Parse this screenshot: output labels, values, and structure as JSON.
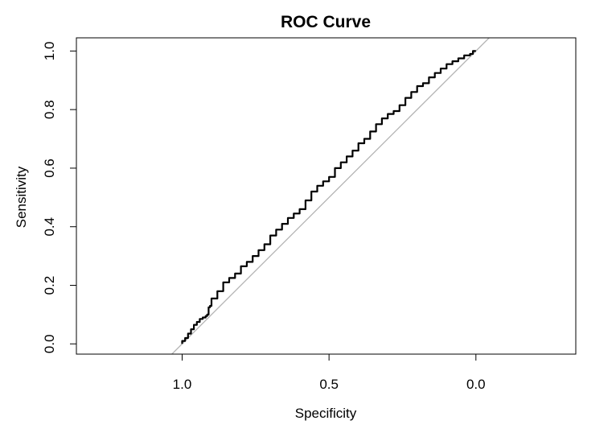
{
  "chart_data": {
    "type": "line",
    "title": "ROC Curve",
    "xlabel": "Specificity",
    "ylabel": "Sensitivity",
    "x_reversed": true,
    "xlim": [
      1.36,
      -0.34
    ],
    "ylim": [
      -0.035,
      1.045
    ],
    "x_ticks": [
      1.0,
      0.5,
      0.0
    ],
    "x_tick_labels": [
      "1.0",
      "0.5",
      "0.0"
    ],
    "y_ticks": [
      0.0,
      0.2,
      0.4,
      0.6,
      0.8,
      1.0
    ],
    "y_tick_labels": [
      "0.0",
      "0.2",
      "0.4",
      "0.6",
      "0.8",
      "1.0"
    ],
    "grid": false,
    "series": [
      {
        "x": [
          1.0,
          0.99,
          0.98,
          0.97,
          0.96,
          0.95,
          0.94,
          0.93,
          0.92,
          0.915,
          0.91,
          0.905,
          0.9,
          0.88,
          0.86,
          0.84,
          0.82,
          0.8,
          0.78,
          0.76,
          0.74,
          0.72,
          0.7,
          0.68,
          0.66,
          0.64,
          0.62,
          0.6,
          0.58,
          0.56,
          0.54,
          0.52,
          0.5,
          0.48,
          0.46,
          0.44,
          0.42,
          0.4,
          0.38,
          0.36,
          0.34,
          0.32,
          0.3,
          0.28,
          0.26,
          0.24,
          0.22,
          0.2,
          0.18,
          0.16,
          0.14,
          0.12,
          0.1,
          0.08,
          0.06,
          0.04,
          0.02,
          0.01,
          0.0
        ],
        "y": [
          0.0,
          0.01,
          0.02,
          0.035,
          0.05,
          0.065,
          0.075,
          0.085,
          0.09,
          0.095,
          0.1,
          0.125,
          0.13,
          0.155,
          0.18,
          0.21,
          0.225,
          0.24,
          0.265,
          0.28,
          0.3,
          0.32,
          0.34,
          0.37,
          0.39,
          0.41,
          0.43,
          0.445,
          0.46,
          0.49,
          0.52,
          0.54,
          0.555,
          0.57,
          0.6,
          0.62,
          0.64,
          0.66,
          0.685,
          0.7,
          0.725,
          0.75,
          0.77,
          0.785,
          0.795,
          0.815,
          0.84,
          0.86,
          0.88,
          0.89,
          0.91,
          0.925,
          0.94,
          0.955,
          0.965,
          0.975,
          0.985,
          0.99,
          1.0
        ]
      }
    ],
    "reference_line": {
      "x": [
        1.0,
        0.0
      ],
      "y": [
        0.0,
        1.0
      ],
      "color": "#b3b3b3"
    },
    "colors": {
      "curve": "#000000",
      "reference": "#b3b3b3",
      "frame": "#000000"
    }
  }
}
